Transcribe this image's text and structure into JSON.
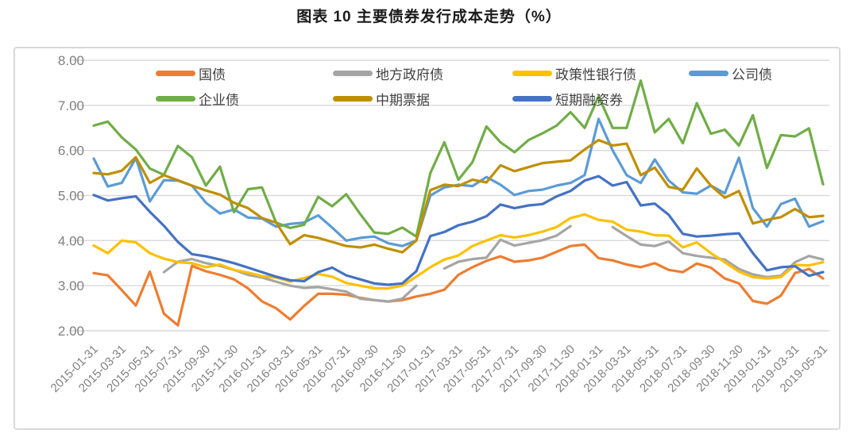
{
  "title": "图表 10 主要债券发行成本走势（%）",
  "chart_data": {
    "type": "line",
    "title": "图表 10 主要债券发行成本走势（%）",
    "xlabel": "",
    "ylabel": "",
    "ylim": [
      2.0,
      8.0
    ],
    "y_tick_step": 1.0,
    "grid": "horizontal",
    "legend_position": "top",
    "axis_text_color": "#808080",
    "grid_color": "#d9d9d9",
    "n_points": 53,
    "x_start": "2015-01",
    "x_end": "2019-05",
    "x_interval": "monthly",
    "y_ticks": [
      "8.00",
      "7.00",
      "6.00",
      "5.00",
      "4.00",
      "3.00",
      "2.00"
    ],
    "x_tick_labels": [
      "2015-01-31",
      "2015-03-31",
      "2015-05-31",
      "2015-07-31",
      "2015-09-30",
      "2015-11-30",
      "2016-01-31",
      "2016-03-31",
      "2016-05-31",
      "2016-07-31",
      "2016-09-30",
      "2016-11-30",
      "2017-01-31",
      "2017-03-31",
      "2017-05-31",
      "2017-07-31",
      "2017-09-30",
      "2017-11-30",
      "2018-01-31",
      "2018-03-31",
      "2018-05-31",
      "2018-07-31",
      "2018-09-30",
      "2018-11-30",
      "2019-01-31",
      "2019-03-31",
      "2019-05-31"
    ],
    "series": [
      {
        "name": "国债",
        "color": "#ED7D31",
        "values": [
          3.28,
          3.23,
          2.9,
          2.56,
          3.31,
          2.38,
          2.12,
          3.44,
          3.32,
          3.24,
          3.14,
          2.94,
          2.65,
          2.5,
          2.25,
          2.55,
          2.82,
          2.82,
          2.8,
          2.73,
          2.68,
          2.65,
          2.68,
          2.76,
          2.82,
          2.91,
          3.24,
          3.41,
          3.55,
          3.65,
          3.53,
          3.56,
          3.62,
          3.75,
          3.88,
          3.91,
          3.61,
          3.56,
          3.47,
          3.41,
          3.5,
          3.35,
          3.3,
          3.49,
          3.4,
          3.16,
          3.05,
          2.66,
          2.6,
          2.78,
          3.28,
          3.37,
          3.16
        ]
      },
      {
        "name": "地方政府债",
        "color": "#A5A5A5",
        "values": [
          null,
          null,
          null,
          null,
          null,
          3.3,
          3.53,
          3.59,
          3.5,
          3.44,
          3.35,
          3.24,
          3.18,
          3.09,
          3.0,
          2.95,
          2.97,
          2.92,
          2.87,
          2.71,
          2.68,
          2.65,
          2.71,
          3.0,
          null,
          3.38,
          3.53,
          3.59,
          3.62,
          4.02,
          3.89,
          3.95,
          4.01,
          4.11,
          4.32,
          null,
          null,
          4.3,
          4.1,
          3.91,
          3.88,
          3.98,
          3.72,
          3.66,
          3.62,
          3.58,
          3.37,
          3.25,
          3.19,
          3.22,
          3.52,
          3.66,
          3.58
        ]
      },
      {
        "name": "政策性银行债",
        "color": "#FFC000",
        "values": [
          3.89,
          3.72,
          4.0,
          3.96,
          3.72,
          3.6,
          3.52,
          3.5,
          3.41,
          3.47,
          3.35,
          3.29,
          3.21,
          3.18,
          3.09,
          3.17,
          3.26,
          3.2,
          3.06,
          3.0,
          2.94,
          2.94,
          3.0,
          3.2,
          3.41,
          3.58,
          3.67,
          3.88,
          4.0,
          4.12,
          4.07,
          4.12,
          4.2,
          4.3,
          4.5,
          4.58,
          4.46,
          4.42,
          4.24,
          4.2,
          4.12,
          4.11,
          3.85,
          3.96,
          3.72,
          3.52,
          3.31,
          3.19,
          3.16,
          3.19,
          3.46,
          3.45,
          3.52
        ]
      },
      {
        "name": "公司债",
        "color": "#5B9BD5",
        "values": [
          5.82,
          5.2,
          5.28,
          5.83,
          4.87,
          5.34,
          5.33,
          5.22,
          4.84,
          4.6,
          4.69,
          4.51,
          4.49,
          4.31,
          4.37,
          4.4,
          4.56,
          4.29,
          4.0,
          4.06,
          4.09,
          3.94,
          3.88,
          4.0,
          5.0,
          5.18,
          5.24,
          5.21,
          5.41,
          5.24,
          5.01,
          5.1,
          5.13,
          5.22,
          5.28,
          5.45,
          6.7,
          6.0,
          5.45,
          5.28,
          5.8,
          5.33,
          5.07,
          5.04,
          5.22,
          5.05,
          5.84,
          4.72,
          4.31,
          4.81,
          4.93,
          4.31,
          4.43
        ]
      },
      {
        "name": "企业债",
        "color": "#70AD47",
        "values": [
          6.55,
          6.64,
          6.29,
          6.02,
          5.6,
          5.46,
          6.1,
          5.85,
          5.22,
          5.64,
          4.63,
          5.14,
          5.18,
          4.4,
          4.28,
          4.35,
          4.97,
          4.76,
          5.03,
          4.59,
          4.18,
          4.15,
          4.29,
          4.09,
          5.5,
          6.18,
          5.35,
          5.74,
          6.53,
          6.18,
          5.96,
          6.23,
          6.38,
          6.55,
          6.85,
          6.5,
          7.2,
          6.5,
          6.5,
          7.55,
          6.4,
          6.7,
          6.16,
          7.05,
          6.37,
          6.46,
          6.11,
          6.78,
          5.61,
          6.34,
          6.31,
          6.49,
          5.25
        ]
      },
      {
        "name": "中期票据",
        "color": "#BF8F00",
        "values": [
          5.5,
          5.47,
          5.55,
          5.85,
          5.28,
          5.45,
          5.34,
          5.22,
          5.11,
          5.02,
          4.84,
          4.72,
          4.5,
          4.4,
          3.92,
          4.12,
          4.06,
          3.97,
          3.88,
          3.85,
          3.91,
          3.82,
          3.74,
          4.0,
          5.12,
          5.24,
          5.21,
          5.35,
          5.29,
          5.67,
          5.54,
          5.63,
          5.72,
          5.75,
          5.78,
          6.02,
          6.23,
          6.11,
          6.15,
          5.45,
          5.62,
          5.19,
          5.13,
          5.6,
          5.22,
          4.95,
          5.1,
          4.38,
          4.46,
          4.52,
          4.7,
          4.52,
          4.55
        ]
      },
      {
        "name": "短期融资券",
        "color": "#4472C4",
        "values": [
          5.01,
          4.89,
          4.94,
          4.98,
          4.64,
          4.33,
          3.97,
          3.7,
          3.65,
          3.58,
          3.5,
          3.4,
          3.3,
          3.2,
          3.12,
          3.1,
          3.3,
          3.4,
          3.23,
          3.14,
          3.05,
          3.02,
          3.05,
          3.32,
          4.1,
          4.19,
          4.34,
          4.42,
          4.54,
          4.8,
          4.72,
          4.78,
          4.81,
          4.98,
          5.1,
          5.33,
          5.43,
          5.22,
          5.3,
          4.78,
          4.82,
          4.57,
          4.15,
          4.09,
          4.11,
          4.14,
          4.16,
          3.72,
          3.34,
          3.41,
          3.43,
          3.22,
          3.3
        ]
      }
    ]
  }
}
